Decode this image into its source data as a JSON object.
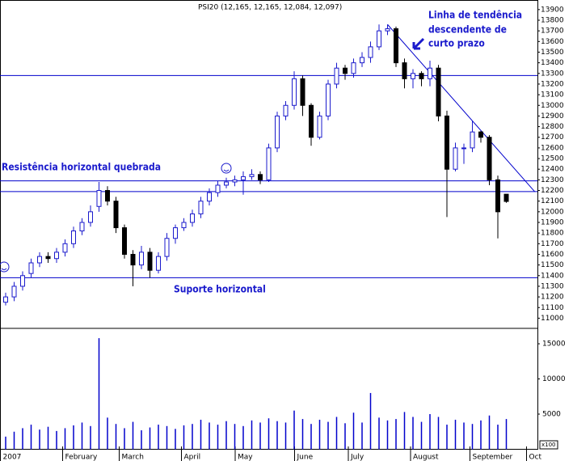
{
  "chart_data": {
    "type": "candlestick",
    "title": "PSI20 (12,165, 12,165, 12,084, 12,097)",
    "x": [
      2,
      5,
      8,
      11,
      14,
      17,
      20,
      23,
      26,
      29,
      32,
      35,
      38,
      41,
      44,
      47,
      50,
      53,
      56,
      59,
      62,
      65,
      68,
      71,
      74,
      77,
      80,
      83,
      86,
      89,
      92,
      95,
      98,
      101,
      104,
      107,
      110,
      113,
      116,
      119,
      122,
      125,
      128,
      131,
      134,
      137,
      140,
      143,
      146,
      149,
      152,
      155,
      158,
      161,
      164,
      167,
      170,
      173,
      176,
      179
    ],
    "open": [
      11150,
      11200,
      11300,
      11420,
      11520,
      11580,
      11560,
      11620,
      11700,
      11820,
      11900,
      12050,
      12200,
      12100,
      11850,
      11600,
      11500,
      11620,
      11450,
      11580,
      11750,
      11850,
      11900,
      11980,
      12100,
      12180,
      12250,
      12280,
      12300,
      12330,
      12350,
      12300,
      12600,
      12900,
      13000,
      13250,
      13000,
      12700,
      12900,
      13200,
      13350,
      13300,
      13400,
      13450,
      13550,
      13700,
      13720,
      13400,
      13250,
      13300,
      13250,
      13350,
      12900,
      12400,
      12600,
      12600,
      12750,
      12700,
      12300,
      12165
    ],
    "high": [
      11240,
      11340,
      11440,
      11560,
      11620,
      11620,
      11660,
      11740,
      11860,
      11940,
      12060,
      12280,
      12240,
      12140,
      11880,
      11640,
      11680,
      11660,
      11620,
      11800,
      11880,
      11940,
      12020,
      12140,
      12220,
      12290,
      12320,
      12340,
      12380,
      12400,
      12380,
      12640,
      12940,
      13040,
      13320,
      13280,
      13020,
      12940,
      13240,
      13400,
      13380,
      13440,
      13500,
      13600,
      13760,
      13760,
      13740,
      13440,
      13340,
      13320,
      13420,
      13380,
      12950,
      12650,
      12640,
      12850,
      12760,
      12720,
      12340,
      12165
    ],
    "low": [
      11120,
      11160,
      11260,
      11380,
      11480,
      11520,
      11520,
      11580,
      11660,
      11780,
      11860,
      12000,
      12060,
      11800,
      11560,
      11300,
      11460,
      11380,
      11420,
      11540,
      11700,
      11820,
      11860,
      11940,
      12060,
      12140,
      12220,
      12240,
      12160,
      12300,
      12260,
      12280,
      12560,
      12860,
      12960,
      12900,
      12620,
      12680,
      12860,
      13160,
      13240,
      13260,
      13360,
      13400,
      13520,
      13660,
      13360,
      13160,
      13160,
      13180,
      13180,
      12850,
      11950,
      12380,
      12450,
      12560,
      12650,
      12250,
      11750,
      12084
    ],
    "close": [
      11200,
      11300,
      11400,
      11520,
      11580,
      11560,
      11620,
      11700,
      11820,
      11900,
      12000,
      12200,
      12100,
      11850,
      11600,
      11500,
      11620,
      11450,
      11580,
      11750,
      11850,
      11900,
      11980,
      12100,
      12180,
      12250,
      12280,
      12300,
      12330,
      12350,
      12300,
      12600,
      12900,
      13000,
      13250,
      13000,
      12700,
      12900,
      13200,
      13350,
      13300,
      13400,
      13450,
      13550,
      13700,
      13720,
      13400,
      13250,
      13300,
      13250,
      13350,
      12900,
      12400,
      12600,
      12600,
      12750,
      12700,
      12300,
      12000,
      12097
    ],
    "volume": [
      1800,
      2500,
      3000,
      3500,
      2800,
      3200,
      2600,
      3000,
      3400,
      3800,
      3300,
      15800,
      4500,
      3600,
      3000,
      3900,
      2700,
      3100,
      3500,
      3300,
      2900,
      3400,
      3600,
      4200,
      3800,
      3500,
      4000,
      3600,
      3300,
      4100,
      3800,
      4400,
      4000,
      3800,
      5500,
      4300,
      3600,
      4200,
      3900,
      4600,
      3700,
      5200,
      3800,
      8000,
      4500,
      4100,
      4300,
      5300,
      4600,
      3900,
      5000,
      4600,
      3500,
      4200,
      3800,
      3600,
      4100,
      4800,
      3500,
      4300
    ],
    "volume_unit": "x100",
    "up_color": "#1a1acc",
    "down_color": "#000000",
    "line_color": "#0000cc",
    "xlim": [
      0,
      190
    ],
    "xticks": [
      {
        "value": 1,
        "label": "2007"
      },
      {
        "value": 23,
        "label": "February"
      },
      {
        "value": 43,
        "label": "March"
      },
      {
        "value": 65,
        "label": "April"
      },
      {
        "value": 84,
        "label": "May"
      },
      {
        "value": 105,
        "label": "June"
      },
      {
        "value": 124,
        "label": "July"
      },
      {
        "value": 146,
        "label": "August"
      },
      {
        "value": 167,
        "label": "September"
      },
      {
        "value": 187,
        "label": "Oct"
      }
    ],
    "ylim": [
      10950,
      13990
    ],
    "yticks": [
      11000,
      11100,
      11200,
      11300,
      11400,
      11500,
      11600,
      11700,
      11800,
      11900,
      12000,
      12100,
      12200,
      12300,
      12400,
      12500,
      12600,
      12700,
      12800,
      12900,
      13000,
      13100,
      13200,
      13300,
      13400,
      13500,
      13600,
      13700,
      13800,
      13900
    ],
    "y2lim": [
      0,
      16500
    ],
    "y2ticks": [
      5000,
      10000,
      15000
    ],
    "levels": [
      13280,
      12290,
      12190,
      11380
    ],
    "trendline": {
      "x": [
        137,
        189
      ],
      "y": [
        13760,
        12190
      ]
    },
    "annotations": [
      "Linha de tendência",
      "descendente de",
      "curto prazo",
      "Resistência horizontal quebrada",
      "Suporte horizontal"
    ]
  }
}
